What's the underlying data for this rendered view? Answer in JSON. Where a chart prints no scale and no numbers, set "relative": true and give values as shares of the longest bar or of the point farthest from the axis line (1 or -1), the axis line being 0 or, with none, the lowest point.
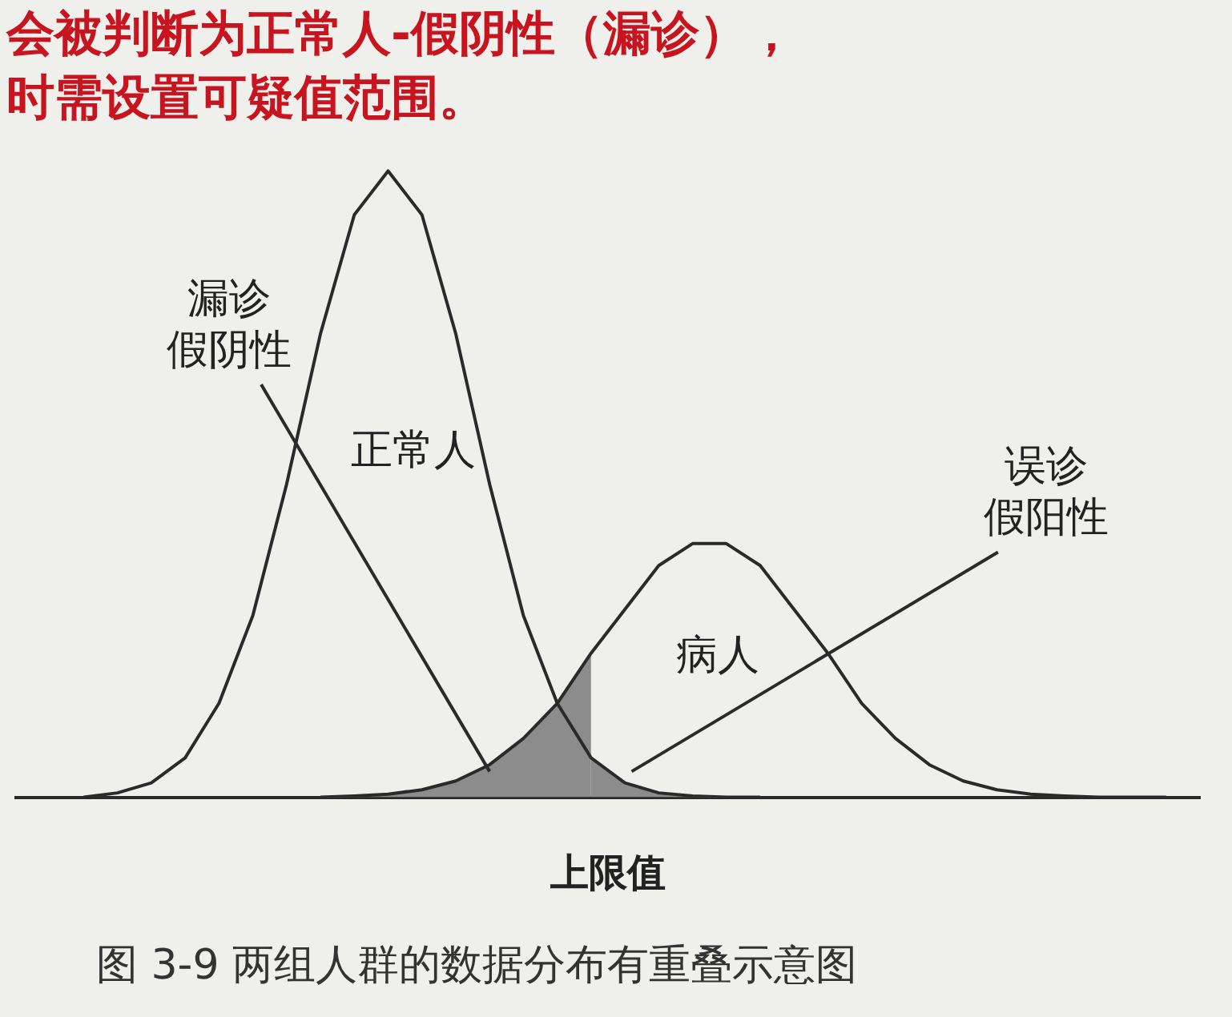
{
  "chart_data": {
    "type": "line",
    "title": "会被判断为正常人-假阴性（漏诊），",
    "subtitle": "时需设置可疑值范围。",
    "xlabel": "上限值",
    "relative": true,
    "grid": false,
    "legend": false,
    "marker": "none",
    "categories": [
      null,
      null,
      null,
      null,
      null,
      null,
      null,
      null,
      null,
      null,
      null,
      null,
      null,
      null,
      null,
      null,
      null,
      null,
      null,
      null,
      null,
      null,
      null,
      null,
      null,
      null,
      null,
      null,
      null,
      null,
      null,
      null,
      null,
      null,
      null,
      null
    ],
    "series": [
      {
        "name": "正常人",
        "color": "#2a2a2a",
        "values": [
          null,
          null,
          0,
          0.007,
          0.023,
          0.063,
          0.15,
          0.29,
          0.5,
          0.74,
          0.93,
          1,
          0.93,
          0.74,
          0.5,
          0.29,
          0.15,
          0.063,
          0.023,
          0.007,
          0.002,
          0,
          0,
          null,
          null,
          null,
          null,
          null,
          null,
          null,
          null,
          null,
          null,
          null,
          null,
          null
        ]
      },
      {
        "name": "病人",
        "color": "#2a2a2a",
        "values": [
          null,
          null,
          null,
          null,
          null,
          null,
          null,
          null,
          null,
          0,
          0.002,
          0.005,
          0.012,
          0.026,
          0.052,
          0.094,
          0.15,
          0.23,
          0.3,
          0.37,
          0.405,
          0.405,
          0.37,
          0.3,
          0.23,
          0.15,
          0.094,
          0.052,
          0.026,
          0.012,
          0.005,
          0.002,
          0,
          0,
          0,
          null
        ]
      },
      {
        "type": "area",
        "color": "#8c8c8c",
        "values": [
          null,
          null,
          null,
          null,
          null,
          null,
          null,
          null,
          null,
          0,
          0.002,
          0.005,
          0.012,
          0.026,
          0.052,
          0.094,
          0.15,
          0.23,
          null,
          null,
          null,
          null,
          null,
          null,
          null,
          null,
          null,
          null,
          null,
          null,
          null,
          null,
          null,
          null,
          null,
          null
        ]
      },
      {
        "type": "area",
        "color": "#8c8c8c",
        "values": [
          null,
          null,
          null,
          null,
          null,
          null,
          null,
          null,
          null,
          null,
          null,
          null,
          null,
          null,
          null,
          null,
          null,
          0.063,
          0.023,
          0.007,
          0.002,
          0,
          0,
          null,
          null,
          null,
          null,
          null,
          null,
          null,
          null,
          null,
          null,
          null,
          null,
          null
        ]
      }
    ],
    "annotations": [
      "漏诊假阴性",
      "误诊假阳性",
      "图 3-9  两组人群的数据分布有重叠示意图"
    ]
  }
}
